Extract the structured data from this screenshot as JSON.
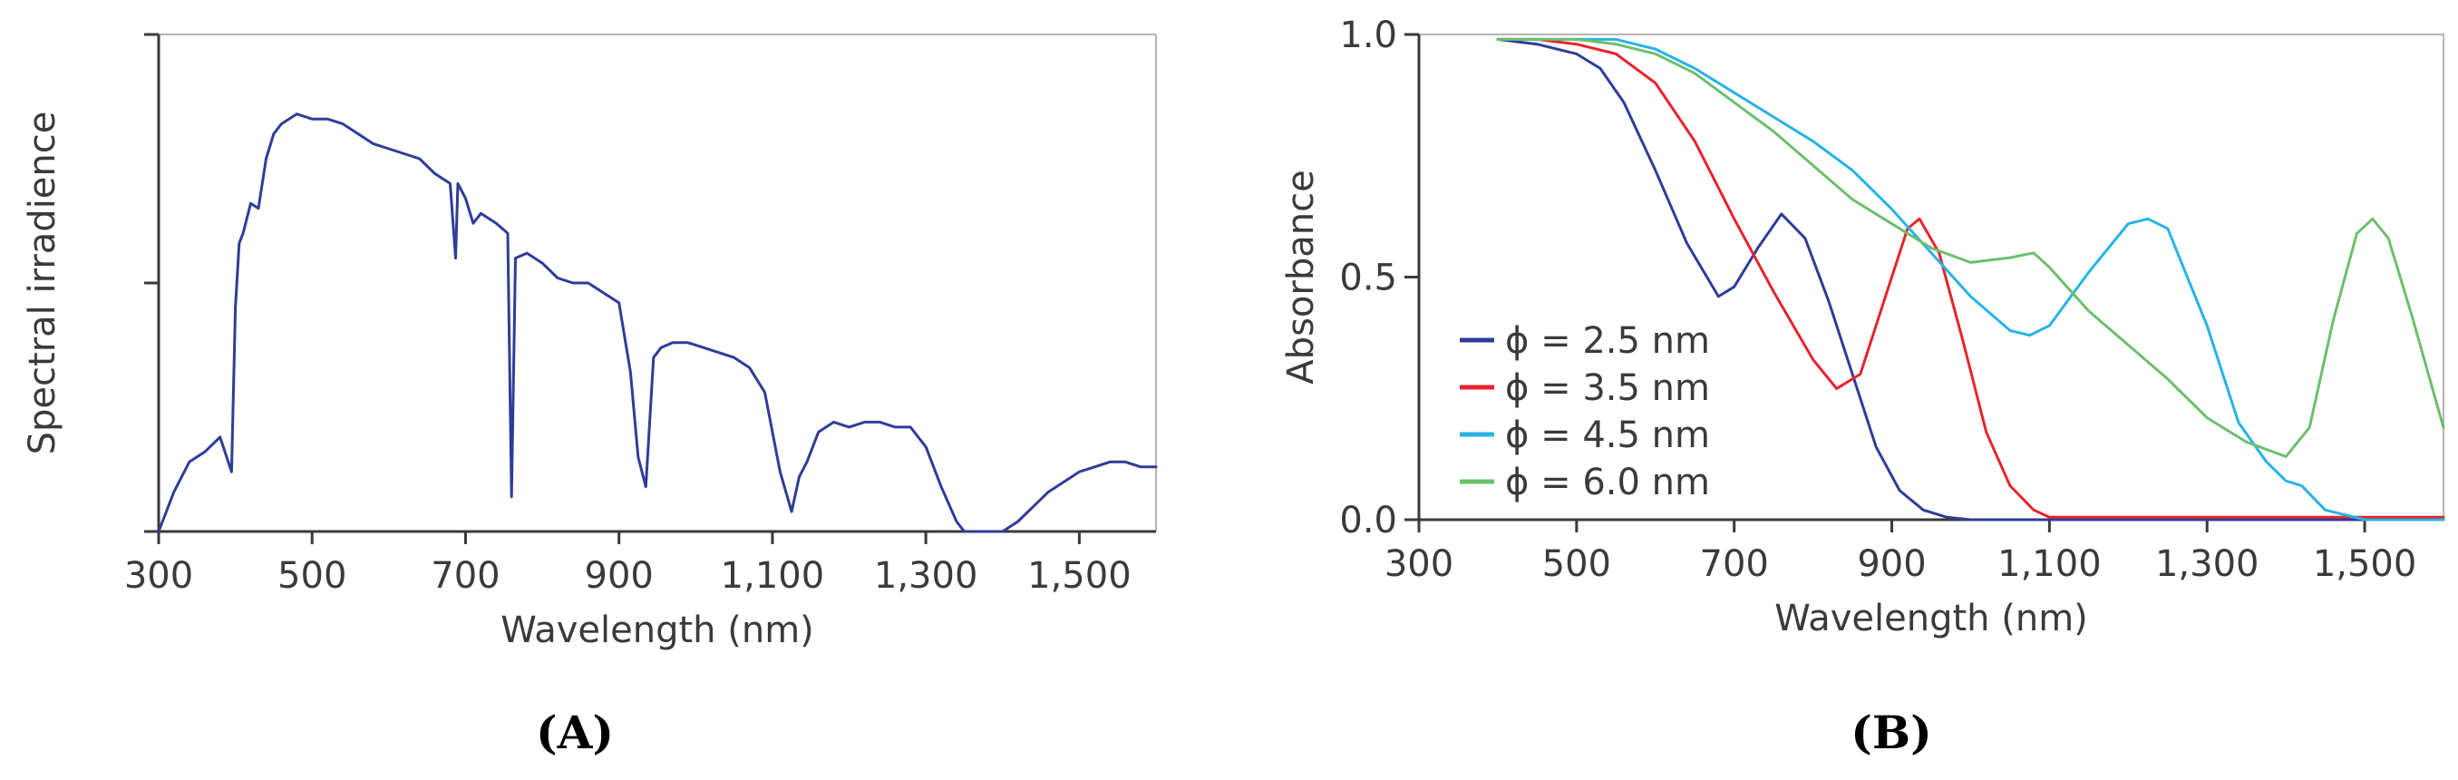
{
  "chart_data": [
    {
      "panel": "(A)",
      "type": "line",
      "ylabel": "Spectral irradience",
      "xlabel": "Wavelength (nm)",
      "xlim": [
        300,
        1600
      ],
      "ylim": [
        0,
        1
      ],
      "xticks": [
        300,
        500,
        700,
        900,
        1100,
        1300,
        1500
      ],
      "xtick_labels": [
        "300",
        "500",
        "700",
        "900",
        "1,100",
        "1,300",
        "1,500"
      ],
      "yticks": [
        0,
        0.5,
        1
      ],
      "ytick_labels": [
        "",
        "",
        ""
      ],
      "grid": false,
      "series": [
        {
          "color": "#2e3d98",
          "x": [
            300,
            320,
            340,
            360,
            380,
            395,
            400,
            405,
            410,
            420,
            430,
            440,
            450,
            460,
            480,
            500,
            520,
            540,
            560,
            580,
            600,
            620,
            640,
            660,
            680,
            687,
            690,
            700,
            710,
            720,
            740,
            755,
            760,
            765,
            780,
            800,
            820,
            840,
            860,
            880,
            900,
            915,
            925,
            935,
            945,
            955,
            970,
            990,
            1010,
            1030,
            1050,
            1070,
            1090,
            1110,
            1125,
            1135,
            1145,
            1160,
            1180,
            1200,
            1220,
            1240,
            1260,
            1280,
            1300,
            1320,
            1340,
            1350,
            1360,
            1380,
            1400,
            1420,
            1440,
            1460,
            1480,
            1500,
            1520,
            1540,
            1560,
            1580,
            1600
          ],
          "y": [
            0.0,
            0.08,
            0.14,
            0.16,
            0.19,
            0.12,
            0.45,
            0.58,
            0.6,
            0.66,
            0.65,
            0.75,
            0.8,
            0.82,
            0.84,
            0.83,
            0.83,
            0.82,
            0.8,
            0.78,
            0.77,
            0.76,
            0.75,
            0.72,
            0.7,
            0.55,
            0.7,
            0.67,
            0.62,
            0.64,
            0.62,
            0.6,
            0.07,
            0.55,
            0.56,
            0.54,
            0.51,
            0.5,
            0.5,
            0.48,
            0.46,
            0.32,
            0.15,
            0.09,
            0.35,
            0.37,
            0.38,
            0.38,
            0.37,
            0.36,
            0.35,
            0.33,
            0.28,
            0.12,
            0.04,
            0.11,
            0.14,
            0.2,
            0.22,
            0.21,
            0.22,
            0.22,
            0.21,
            0.21,
            0.17,
            0.09,
            0.02,
            0.0,
            0.0,
            0.0,
            0.0,
            0.02,
            0.05,
            0.08,
            0.1,
            0.12,
            0.13,
            0.14,
            0.14,
            0.13,
            0.13
          ]
        }
      ]
    },
    {
      "panel": "(B)",
      "type": "line",
      "ylabel": "Absorbance",
      "xlabel": "Wavelength (nm)",
      "xlim": [
        300,
        1600
      ],
      "ylim": [
        0,
        1
      ],
      "xticks": [
        300,
        500,
        700,
        900,
        1100,
        1300,
        1500
      ],
      "xtick_labels": [
        "300",
        "500",
        "700",
        "900",
        "1,100",
        "1,300",
        "1,500"
      ],
      "yticks": [
        0,
        0.5,
        1
      ],
      "ytick_labels": [
        "0.0",
        "0.5",
        "1.0"
      ],
      "grid": false,
      "legend": "lower-left",
      "series": [
        {
          "name": "ϕ = 2.5 nm",
          "color": "#2e3d98",
          "x": [
            400,
            450,
            500,
            530,
            560,
            600,
            640,
            680,
            700,
            730,
            760,
            790,
            820,
            850,
            880,
            910,
            940,
            970,
            1000,
            1050,
            1100,
            1200,
            1300,
            1400,
            1500,
            1600
          ],
          "y": [
            0.99,
            0.98,
            0.96,
            0.93,
            0.86,
            0.72,
            0.57,
            0.46,
            0.48,
            0.56,
            0.63,
            0.58,
            0.45,
            0.3,
            0.15,
            0.06,
            0.02,
            0.005,
            0.0,
            0.0,
            0.0,
            0.0,
            0.0,
            0.0,
            0.0,
            0.0
          ]
        },
        {
          "name": "ϕ = 3.5 nm",
          "color": "#e8232c",
          "x": [
            400,
            450,
            500,
            550,
            600,
            650,
            700,
            750,
            800,
            830,
            860,
            890,
            920,
            935,
            960,
            990,
            1020,
            1050,
            1080,
            1100,
            1200,
            1300,
            1400,
            1500,
            1600
          ],
          "y": [
            0.99,
            0.99,
            0.98,
            0.96,
            0.9,
            0.78,
            0.62,
            0.47,
            0.33,
            0.27,
            0.3,
            0.45,
            0.6,
            0.62,
            0.55,
            0.37,
            0.18,
            0.07,
            0.02,
            0.005,
            0.005,
            0.005,
            0.005,
            0.005,
            0.005
          ]
        },
        {
          "name": "ϕ = 4.5 nm",
          "color": "#27b3e6",
          "x": [
            400,
            450,
            500,
            550,
            600,
            650,
            700,
            750,
            800,
            850,
            900,
            950,
            1000,
            1050,
            1075,
            1100,
            1150,
            1200,
            1225,
            1250,
            1300,
            1340,
            1375,
            1400,
            1420,
            1450,
            1500,
            1550,
            1600
          ],
          "y": [
            0.99,
            0.99,
            0.99,
            0.99,
            0.97,
            0.93,
            0.88,
            0.83,
            0.78,
            0.72,
            0.64,
            0.55,
            0.46,
            0.39,
            0.38,
            0.4,
            0.51,
            0.61,
            0.62,
            0.6,
            0.4,
            0.2,
            0.12,
            0.08,
            0.07,
            0.02,
            0.0,
            0.0,
            0.0
          ]
        },
        {
          "name": "ϕ = 6.0 nm",
          "color": "#6cbf6c",
          "x": [
            400,
            450,
            500,
            550,
            600,
            650,
            700,
            750,
            800,
            850,
            900,
            950,
            1000,
            1050,
            1080,
            1100,
            1150,
            1200,
            1250,
            1300,
            1350,
            1400,
            1430,
            1460,
            1490,
            1510,
            1530,
            1560,
            1600
          ],
          "y": [
            0.99,
            0.99,
            0.99,
            0.98,
            0.96,
            0.92,
            0.86,
            0.8,
            0.73,
            0.66,
            0.61,
            0.56,
            0.53,
            0.54,
            0.55,
            0.52,
            0.43,
            0.36,
            0.29,
            0.21,
            0.16,
            0.13,
            0.19,
            0.41,
            0.59,
            0.62,
            0.58,
            0.42,
            0.19
          ]
        }
      ]
    }
  ],
  "panels": {
    "a_label": "(A)",
    "b_label": "(B)"
  },
  "colors": {
    "axis": "#3a3a3a",
    "frame": "#b5b5b5"
  }
}
